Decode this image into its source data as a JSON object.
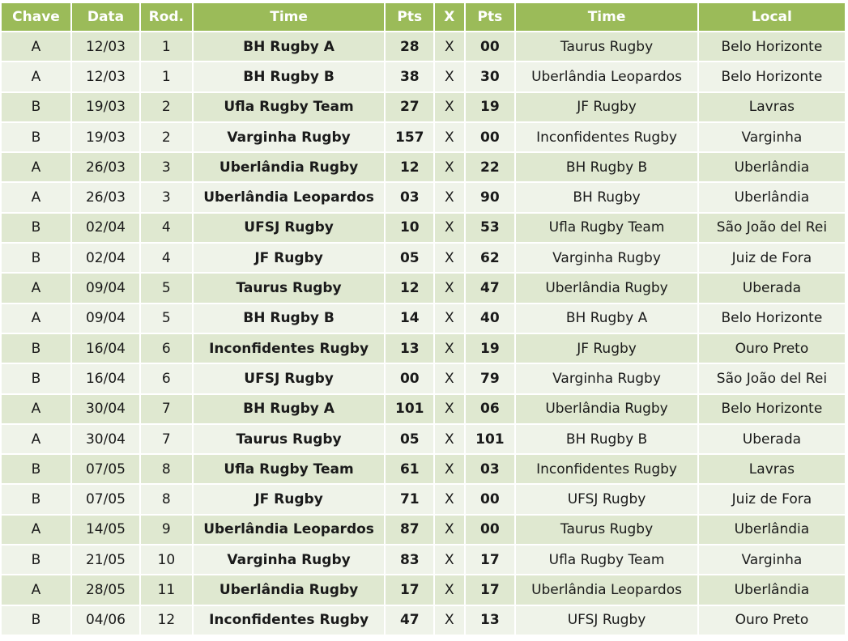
{
  "headers": {
    "group": "Chave",
    "date": "Data",
    "round": "Rod.",
    "home_team": "Time",
    "home_pts": "Pts",
    "versus": "X",
    "away_pts": "Pts",
    "away_team": "Time",
    "venue": "Local"
  },
  "versus_mark": "X",
  "rows": [
    {
      "group": "A",
      "date": "12/03",
      "round": "1",
      "home": "BH Rugby A",
      "home_pts": "28",
      "away_pts": "00",
      "away": "Taurus Rugby",
      "venue": "Belo Horizonte"
    },
    {
      "group": "A",
      "date": "12/03",
      "round": "1",
      "home": "BH Rugby B",
      "home_pts": "38",
      "away_pts": "30",
      "away": "Uberlândia Leopardos",
      "venue": "Belo Horizonte"
    },
    {
      "group": "B",
      "date": "19/03",
      "round": "2",
      "home": "Ufla Rugby Team",
      "home_pts": "27",
      "away_pts": "19",
      "away": "JF Rugby",
      "venue": "Lavras"
    },
    {
      "group": "B",
      "date": "19/03",
      "round": "2",
      "home": "Varginha Rugby",
      "home_pts": "157",
      "away_pts": "00",
      "away": "Inconfidentes Rugby",
      "venue": "Varginha"
    },
    {
      "group": "A",
      "date": "26/03",
      "round": "3",
      "home": "Uberlândia Rugby",
      "home_pts": "12",
      "away_pts": "22",
      "away": "BH Rugby B",
      "venue": "Uberlândia"
    },
    {
      "group": "A",
      "date": "26/03",
      "round": "3",
      "home": "Uberlândia Leopardos",
      "home_pts": "03",
      "away_pts": "90",
      "away": "BH Rugby",
      "venue": "Uberlândia"
    },
    {
      "group": "B",
      "date": "02/04",
      "round": "4",
      "home": "UFSJ Rugby",
      "home_pts": "10",
      "away_pts": "53",
      "away": "Ufla Rugby Team",
      "venue": "São João del Rei"
    },
    {
      "group": "B",
      "date": "02/04",
      "round": "4",
      "home": "JF Rugby",
      "home_pts": "05",
      "away_pts": "62",
      "away": "Varginha Rugby",
      "venue": "Juiz de Fora"
    },
    {
      "group": "A",
      "date": "09/04",
      "round": "5",
      "home": "Taurus Rugby",
      "home_pts": "12",
      "away_pts": "47",
      "away": "Uberlândia Rugby",
      "venue": "Uberada"
    },
    {
      "group": "A",
      "date": "09/04",
      "round": "5",
      "home": "BH Rugby B",
      "home_pts": "14",
      "away_pts": "40",
      "away": "BH Rugby A",
      "venue": "Belo Horizonte"
    },
    {
      "group": "B",
      "date": "16/04",
      "round": "6",
      "home": "Inconfidentes Rugby",
      "home_pts": "13",
      "away_pts": "19",
      "away": "JF Rugby",
      "venue": "Ouro Preto"
    },
    {
      "group": "B",
      "date": "16/04",
      "round": "6",
      "home": "UFSJ Rugby",
      "home_pts": "00",
      "away_pts": "79",
      "away": "Varginha Rugby",
      "venue": "São João del Rei"
    },
    {
      "group": "A",
      "date": "30/04",
      "round": "7",
      "home": "BH Rugby A",
      "home_pts": "101",
      "away_pts": "06",
      "away": "Uberlândia Rugby",
      "venue": "Belo Horizonte"
    },
    {
      "group": "A",
      "date": "30/04",
      "round": "7",
      "home": "Taurus Rugby",
      "home_pts": "05",
      "away_pts": "101",
      "away": "BH Rugby B",
      "venue": "Uberada"
    },
    {
      "group": "B",
      "date": "07/05",
      "round": "8",
      "home": "Ufla Rugby Team",
      "home_pts": "61",
      "away_pts": "03",
      "away": "Inconfidentes Rugby",
      "venue": "Lavras"
    },
    {
      "group": "B",
      "date": "07/05",
      "round": "8",
      "home": "JF Rugby",
      "home_pts": "71",
      "away_pts": "00",
      "away": "UFSJ Rugby",
      "venue": "Juiz de Fora"
    },
    {
      "group": "A",
      "date": "14/05",
      "round": "9",
      "home": "Uberlândia Leopardos",
      "home_pts": "87",
      "away_pts": "00",
      "away": "Taurus Rugby",
      "venue": "Uberlândia"
    },
    {
      "group": "B",
      "date": "21/05",
      "round": "10",
      "home": "Varginha Rugby",
      "home_pts": "83",
      "away_pts": "17",
      "away": "Ufla Rugby Team",
      "venue": "Varginha"
    },
    {
      "group": "A",
      "date": "28/05",
      "round": "11",
      "home": "Uberlândia Rugby",
      "home_pts": "17",
      "away_pts": "17",
      "away": "Uberlândia Leopardos",
      "venue": "Uberlândia"
    },
    {
      "group": "B",
      "date": "04/06",
      "round": "12",
      "home": "Inconfidentes Rugby",
      "home_pts": "47",
      "away_pts": "13",
      "away": "UFSJ Rugby",
      "venue": "Ouro Preto"
    }
  ],
  "colors": {
    "header_bg": "#9bbb59",
    "header_text": "#ffffff",
    "row_odd_bg": "#dfe8d0",
    "row_even_bg": "#eff3e9"
  }
}
